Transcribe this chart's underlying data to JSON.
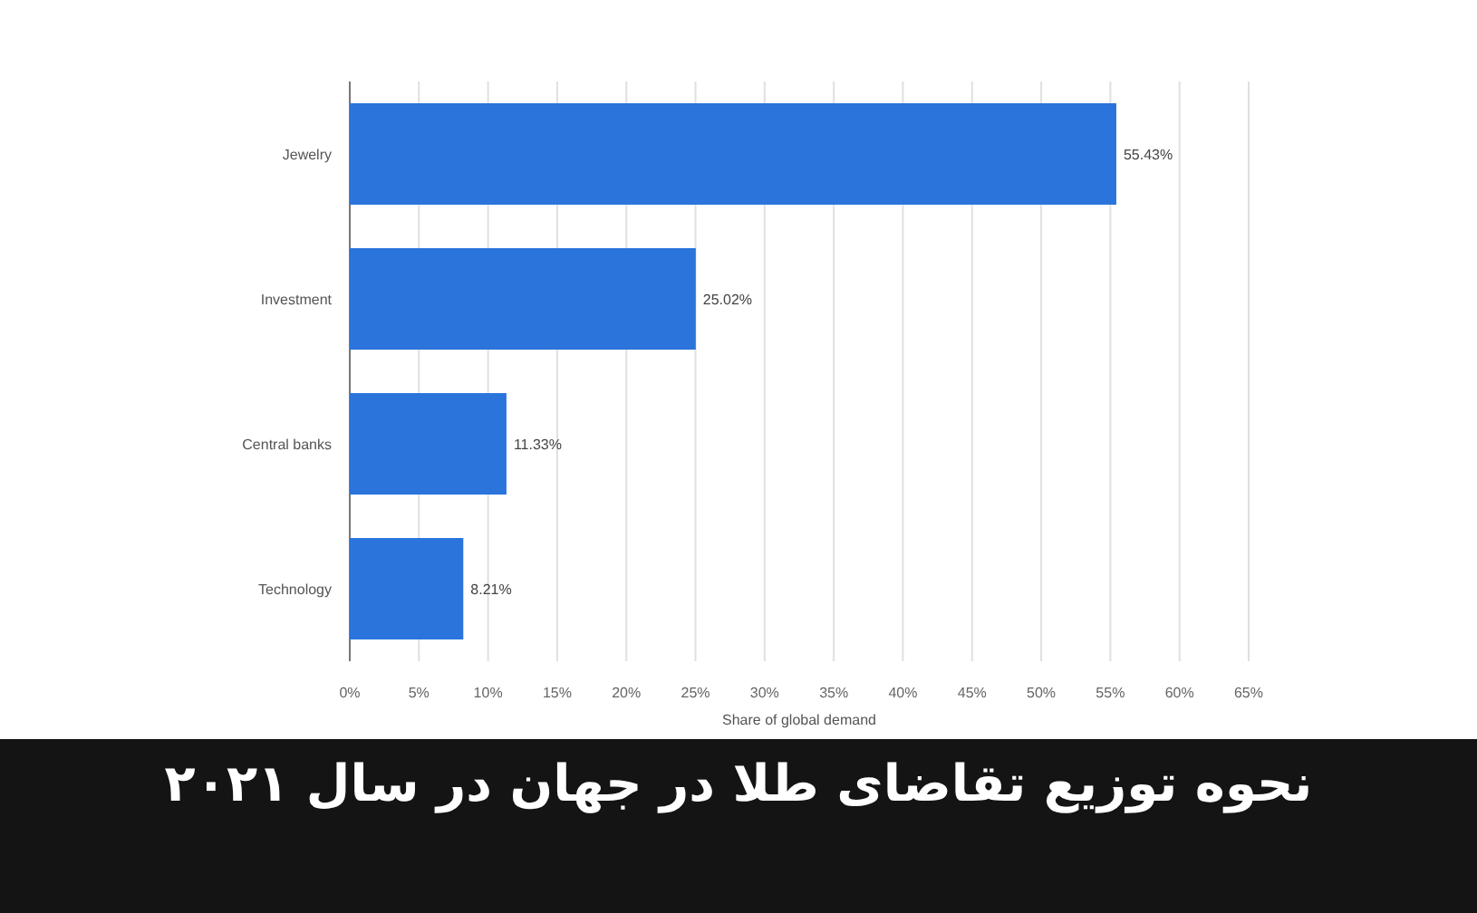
{
  "chart_data": {
    "type": "bar",
    "orientation": "horizontal",
    "title": "نحوه توزیع تقاضای طلا در جهان در سال ۲۰۲۱",
    "xlabel": "Share of global demand",
    "categories": [
      "Jewelry",
      "Investment",
      "Central banks",
      "Technology"
    ],
    "values": [
      55.43,
      25.02,
      11.33,
      8.21
    ],
    "value_labels": [
      "55.43%",
      "25.02%",
      "11.33%",
      "8.21%"
    ],
    "color": "#2a74dc",
    "xlim": [
      0,
      65
    ],
    "xticks": [
      {
        "value": 0,
        "label": "0%"
      },
      {
        "value": 5,
        "label": "5%"
      },
      {
        "value": 10,
        "label": "10%"
      },
      {
        "value": 15,
        "label": "15%"
      },
      {
        "value": 20,
        "label": "20%"
      },
      {
        "value": 25,
        "label": "25%"
      },
      {
        "value": 30,
        "label": "30%"
      },
      {
        "value": 35,
        "label": "35%"
      },
      {
        "value": 40,
        "label": "40%"
      },
      {
        "value": 45,
        "label": "45%"
      },
      {
        "value": 50,
        "label": "50%"
      },
      {
        "value": 55,
        "label": "55%"
      },
      {
        "value": 60,
        "label": "60%"
      },
      {
        "value": 65,
        "label": "65%"
      }
    ],
    "grid": "x"
  }
}
